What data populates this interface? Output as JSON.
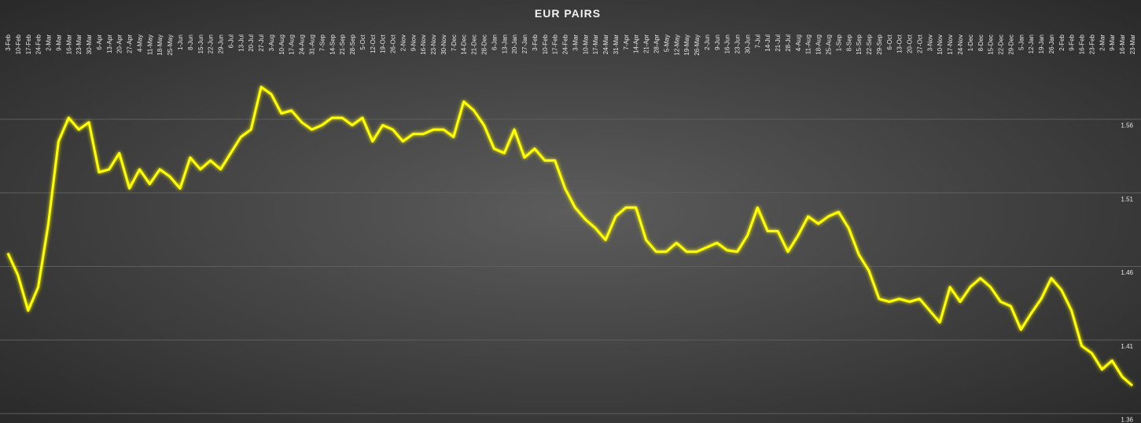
{
  "chart_data": {
    "type": "line",
    "title": "EUR PAIRS",
    "color": "#ffff00",
    "grid": true,
    "categories": [
      "3-Feb",
      "10-Feb",
      "17-Feb",
      "24-Feb",
      "2-Mar",
      "9-Mar",
      "16-Mar",
      "23-Mar",
      "30-Mar",
      "6-Apr",
      "13-Apr",
      "20-Apr",
      "27-Apr",
      "4-May",
      "11-May",
      "18-May",
      "25-May",
      "1-Jun",
      "8-Jun",
      "15-Jun",
      "22-Jun",
      "29-Jun",
      "6-Jul",
      "13-Jul",
      "20-Jul",
      "27-Jul",
      "3-Aug",
      "10-Aug",
      "17-Aug",
      "24-Aug",
      "31-Aug",
      "7-Sep",
      "14-Sep",
      "21-Sep",
      "28-Sep",
      "5-Oct",
      "12-Oct",
      "19-Oct",
      "26-Oct",
      "2-Nov",
      "9-Nov",
      "16-Nov",
      "23-Nov",
      "30-Nov",
      "7-Dec",
      "14-Dec",
      "21-Dec",
      "28-Dec",
      "6-Jan",
      "13-Jan",
      "20-Jan",
      "27-Jan",
      "3-Feb",
      "10-Feb",
      "17-Feb",
      "24-Feb",
      "3-Mar",
      "10-Mar",
      "17-Mar",
      "24-Mar",
      "31-Mar",
      "7-Apr",
      "14-Apr",
      "21-Apr",
      "28-Apr",
      "5-May",
      "12-May",
      "19-May",
      "26-May",
      "2-Jun",
      "9-Jun",
      "16-Jun",
      "23-Jun",
      "30-Jun",
      "7-Jul",
      "14-Jul",
      "21-Jul",
      "28-Jul",
      "4-Aug",
      "11-Aug",
      "18-Aug",
      "25-Aug",
      "1-Sep",
      "8-Sep",
      "15-Sep",
      "22-Sep",
      "29-Sep",
      "6-Oct",
      "13-Oct",
      "20-Oct",
      "27-Oct",
      "3-Nov",
      "10-Nov",
      "17-Nov",
      "24-Nov",
      "1-Dec",
      "8-Dec",
      "15-Dec",
      "22-Dec",
      "29-Dec",
      "5-Jan",
      "12-Jan",
      "19-Jan",
      "26-Jan",
      "2-Feb",
      "9-Feb",
      "16-Feb",
      "23-Feb",
      "2-Mar",
      "9-Mar",
      "16-Mar",
      "23-Mar"
    ],
    "values": [
      1.469,
      1.454,
      1.43,
      1.446,
      1.489,
      1.545,
      1.561,
      1.553,
      1.558,
      1.524,
      1.526,
      1.537,
      1.513,
      1.526,
      1.516,
      1.526,
      1.521,
      1.513,
      1.534,
      1.526,
      1.532,
      1.526,
      1.537,
      1.548,
      1.553,
      1.582,
      1.577,
      1.564,
      1.566,
      1.558,
      1.553,
      1.556,
      1.561,
      1.561,
      1.556,
      1.561,
      1.545,
      1.556,
      1.553,
      1.545,
      1.55,
      1.55,
      1.553,
      1.553,
      1.548,
      1.572,
      1.566,
      1.556,
      1.54,
      1.537,
      1.553,
      1.534,
      1.54,
      1.532,
      1.532,
      1.513,
      1.5,
      1.492,
      1.486,
      1.478,
      1.494,
      1.5,
      1.5,
      1.478,
      1.47,
      1.47,
      1.476,
      1.47,
      1.47,
      1.473,
      1.476,
      1.471,
      1.47,
      1.481,
      1.5,
      1.484,
      1.484,
      1.47,
      1.481,
      1.494,
      1.489,
      1.494,
      1.497,
      1.486,
      1.468,
      1.457,
      1.438,
      1.436,
      1.438,
      1.436,
      1.438,
      1.43,
      1.422,
      1.446,
      1.436,
      1.446,
      1.452,
      1.446,
      1.436,
      1.433,
      1.417,
      1.428,
      1.438,
      1.452,
      1.444,
      1.43,
      1.406,
      1.401,
      1.39,
      1.396,
      1.385,
      1.379
    ],
    "ylim": [
      1.36,
      1.62
    ],
    "yticks": [
      1.36,
      1.41,
      1.46,
      1.51,
      1.56
    ]
  }
}
